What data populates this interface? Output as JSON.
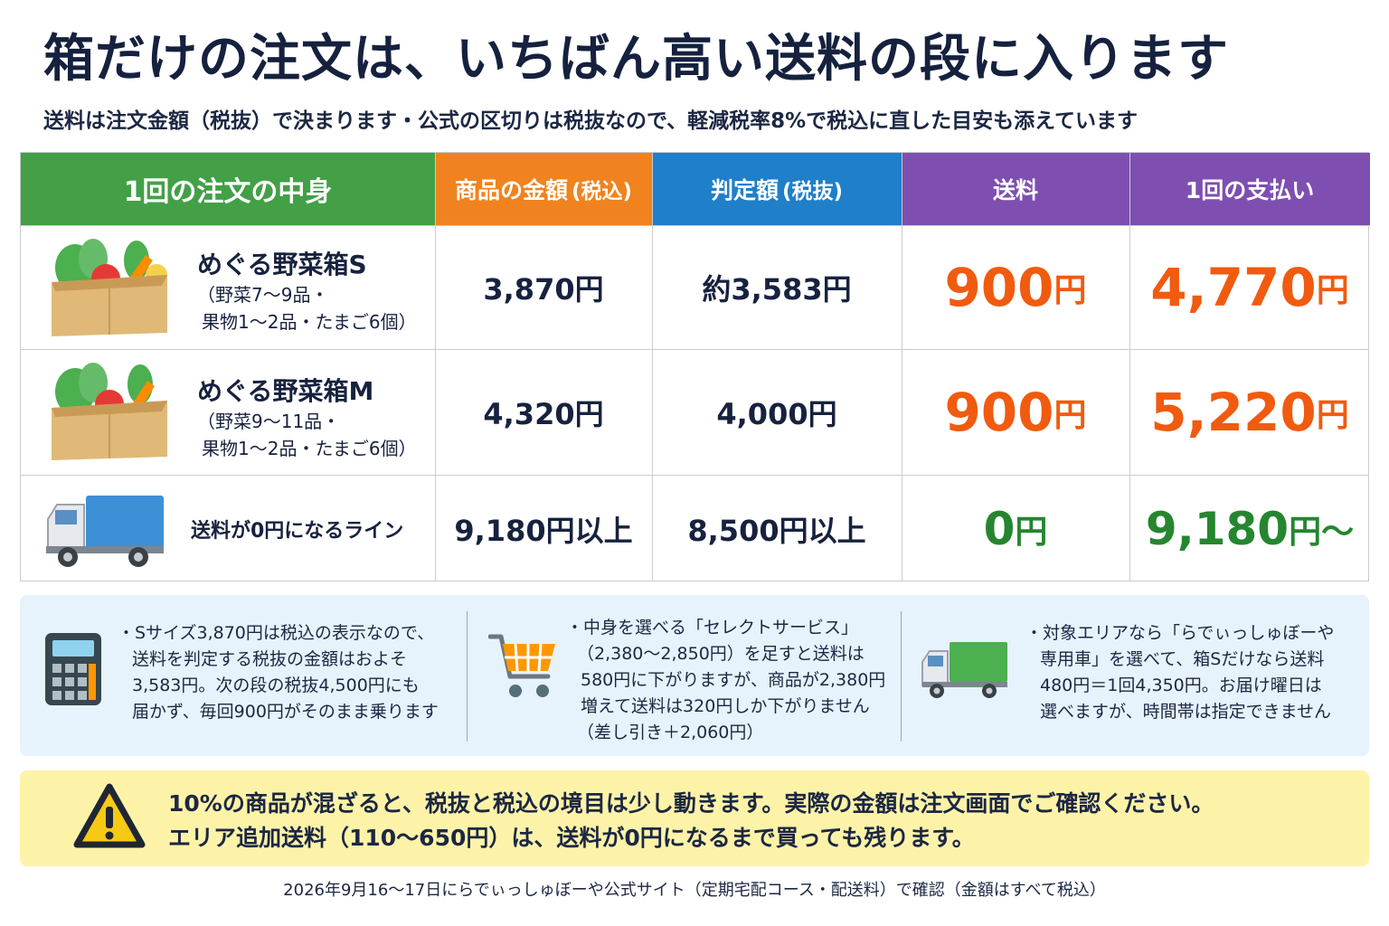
{
  "title": "箱だけの注文は、いちばん高い送料の段に入ります",
  "subtitle": "送料は注文金額（税抜）で決まります・公式の区切りは税抜なので、軽減税率8%で税込に直した目安も添えています",
  "table": {
    "headers": {
      "contents": "1回の注文の中身",
      "price_main": "商品の金額",
      "price_sub": "(税込)",
      "judge_main": "判定額",
      "judge_sub": "(税抜)",
      "shipping": "送料",
      "payment": "1回の支払い"
    },
    "header_colors": [
      "#43a047",
      "#f0831f",
      "#1f7fc8",
      "#7e4fb0",
      "#7e4fb0"
    ],
    "rows": [
      {
        "name": "めぐる野菜箱S",
        "desc1": "（野菜7〜9品・",
        "desc2": "果物1〜2品・たまご6個）",
        "price": "3,870円",
        "judge": "約3,583円",
        "shipping_num": "900",
        "shipping_unit": "円",
        "payment_num": "4,770",
        "payment_unit": "円"
      },
      {
        "name": "めぐる野菜箱M",
        "desc1": "（野菜9〜11品・",
        "desc2": "果物1〜2品・たまご6個）",
        "price": "4,320円",
        "judge": "4,000円",
        "shipping_num": "900",
        "shipping_unit": "円",
        "payment_num": "5,220",
        "payment_unit": "円"
      },
      {
        "name": "送料が0円になるライン",
        "price": "9,180円以上",
        "judge": "8,500円以上",
        "shipping_num": "0",
        "shipping_unit": "円",
        "payment_num": "9,180",
        "payment_unit": "円〜"
      }
    ]
  },
  "notes": [
    {
      "icon": "calculator-icon",
      "lines": [
        "・Sサイズ3,870円は税込の表示なので、",
        "送料を判定する税抜の金額はおよそ",
        "3,583円。次の段の税抜4,500円にも",
        "届かず、毎回900円がそのまま乗ります"
      ]
    },
    {
      "icon": "shopping-cart-icon",
      "lines": [
        "・中身を選べる「セレクトサービス」",
        "（2,380〜2,850円）を足すと送料は",
        "580円に下がりますが、商品が2,380円",
        "増えて送料は320円しか下がりません",
        "（差し引き＋2,060円）"
      ]
    },
    {
      "icon": "truck-icon",
      "lines": [
        "・対象エリアなら「らでぃっしゅぼーや",
        "専用車」を選べて、箱Sだけなら送料",
        "480円＝1回4,350円。お届け曜日は",
        "選べますが、時間帯は指定できません"
      ]
    }
  ],
  "warning": {
    "icon": "warning-icon",
    "line1": "10%の商品が混ざると、税抜と税込の境目は少し動きます。実際の金額は注文画面でご確認ください。",
    "line2": "エリア追加送料（110〜650円）は、送料が0円になるまで買っても残ります。"
  },
  "footer": "2026年9月16〜17日にらでぃっしゅぼーや公式サイト（定期宅配コース・配送料）で確認（金額はすべて税込）"
}
